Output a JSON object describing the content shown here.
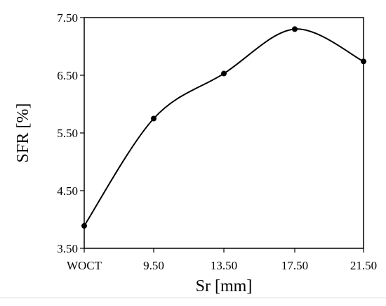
{
  "chart_data": {
    "type": "line",
    "title": "",
    "xlabel": "Sr [mm]",
    "ylabel": "SFR [%]",
    "categories": [
      "WOCT",
      "9.50",
      "13.50",
      "17.50",
      "21.50"
    ],
    "series": [
      {
        "values": [
          3.89,
          5.75,
          6.53,
          7.3,
          6.74
        ]
      }
    ],
    "ylim": [
      3.5,
      7.5
    ],
    "yticks": [
      "3.50",
      "4.50",
      "5.50",
      "6.50",
      "7.50"
    ],
    "smooth": true,
    "markers": "circle",
    "grid": false,
    "legend": "none",
    "colors": {
      "line": "#000000",
      "axis": "#000000"
    }
  }
}
